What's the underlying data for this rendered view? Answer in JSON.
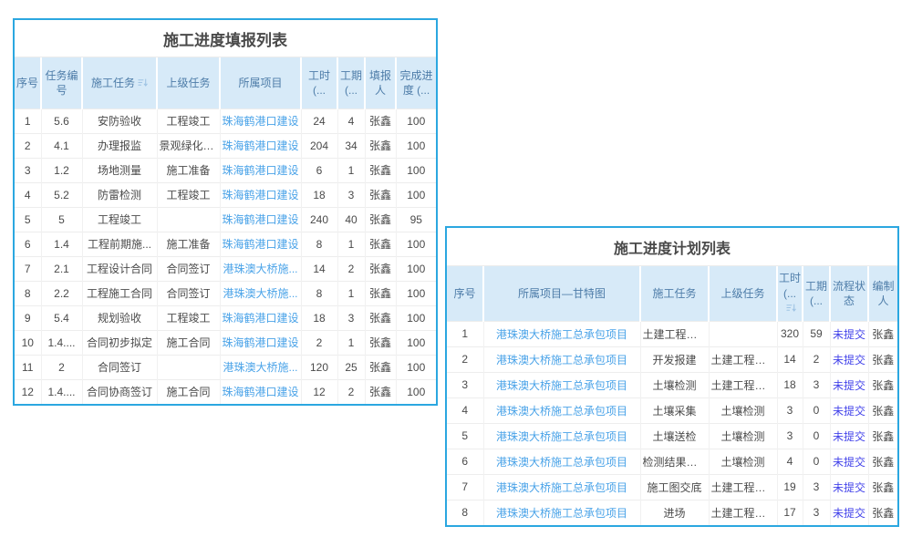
{
  "colors": {
    "card_border": "#2BA7E0",
    "header_bg": "#D7EAF8",
    "header_text": "#4D7CA8",
    "body_text": "#4A4A4A",
    "link": "#4AA3E8",
    "status_link": "#4343EA"
  },
  "report_table": {
    "title": "施工进度填报列表",
    "columns": [
      {
        "label": "序号",
        "type": "text"
      },
      {
        "label": "任务编号",
        "type": "text"
      },
      {
        "label": "施工任务",
        "type": "text",
        "sortable": true,
        "icon": "sort-icon"
      },
      {
        "label": "上级任务",
        "type": "text"
      },
      {
        "label": "所属项目",
        "type": "text"
      },
      {
        "label": "工时 (...",
        "type": "text"
      },
      {
        "label": "工期 (...",
        "type": "text"
      },
      {
        "label": "填报人",
        "type": "text"
      },
      {
        "label": "完成进度 (...",
        "type": "text"
      }
    ],
    "link_column_label": "所属项目",
    "rows": [
      [
        "1",
        "5.6",
        "安防验收",
        "工程竣工",
        "珠海鹤港口建设",
        "24",
        "4",
        "张鑫",
        "100"
      ],
      [
        "2",
        "4.1",
        "办理报监",
        "景观绿化施工",
        "珠海鹤港口建设",
        "204",
        "34",
        "张鑫",
        "100"
      ],
      [
        "3",
        "1.2",
        "场地测量",
        "施工准备",
        "珠海鹤港口建设",
        "6",
        "1",
        "张鑫",
        "100"
      ],
      [
        "4",
        "5.2",
        "防雷检测",
        "工程竣工",
        "珠海鹤港口建设",
        "18",
        "3",
        "张鑫",
        "100"
      ],
      [
        "5",
        "5",
        "工程竣工",
        "",
        "珠海鹤港口建设",
        "240",
        "40",
        "张鑫",
        "95"
      ],
      [
        "6",
        "1.4",
        "工程前期施...",
        "施工准备",
        "珠海鹤港口建设",
        "8",
        "1",
        "张鑫",
        "100"
      ],
      [
        "7",
        "2.1",
        "工程设计合同",
        "合同签订",
        "港珠澳大桥施...",
        "14",
        "2",
        "张鑫",
        "100"
      ],
      [
        "8",
        "2.2",
        "工程施工合同",
        "合同签订",
        "港珠澳大桥施...",
        "8",
        "1",
        "张鑫",
        "100"
      ],
      [
        "9",
        "5.4",
        "规划验收",
        "工程竣工",
        "珠海鹤港口建设",
        "18",
        "3",
        "张鑫",
        "100"
      ],
      [
        "10",
        "1.4....",
        "合同初步拟定",
        "施工合同",
        "珠海鹤港口建设",
        "2",
        "1",
        "张鑫",
        "100"
      ],
      [
        "11",
        "2",
        "合同签订",
        "",
        "港珠澳大桥施...",
        "120",
        "25",
        "张鑫",
        "100"
      ],
      [
        "12",
        "1.4....",
        "合同协商签订",
        "施工合同",
        "珠海鹤港口建设",
        "12",
        "2",
        "张鑫",
        "100"
      ]
    ]
  },
  "plan_table": {
    "title": "施工进度计划列表",
    "columns": [
      {
        "label": "序号",
        "type": "text"
      },
      {
        "label": "所属项目—甘特图",
        "type": "link"
      },
      {
        "label": "施工任务",
        "type": "text"
      },
      {
        "label": "上级任务",
        "type": "text"
      },
      {
        "label": "工时 (...",
        "type": "text",
        "sortable": true,
        "icon": "sort-icon"
      },
      {
        "label": "工期 (...",
        "type": "text"
      },
      {
        "label": "流程状态",
        "type": "status"
      },
      {
        "label": "编制人",
        "type": "text"
      }
    ],
    "rows": [
      [
        "1",
        "港珠澳大桥施工总承包项目",
        "土建工程施工",
        "",
        "320",
        "59",
        "未提交",
        "张鑫"
      ],
      [
        "2",
        "港珠澳大桥施工总承包项目",
        "开发报建",
        "土建工程施工",
        "14",
        "2",
        "未提交",
        "张鑫"
      ],
      [
        "3",
        "港珠澳大桥施工总承包项目",
        "土壤检测",
        "土建工程施工",
        "18",
        "3",
        "未提交",
        "张鑫"
      ],
      [
        "4",
        "港珠澳大桥施工总承包项目",
        "土壤采集",
        "土壤检测",
        "3",
        "0",
        "未提交",
        "张鑫"
      ],
      [
        "5",
        "港珠澳大桥施工总承包项目",
        "土壤送检",
        "土壤检测",
        "3",
        "0",
        "未提交",
        "张鑫"
      ],
      [
        "6",
        "港珠澳大桥施工总承包项目",
        "检测结果存底",
        "土壤检测",
        "4",
        "0",
        "未提交",
        "张鑫"
      ],
      [
        "7",
        "港珠澳大桥施工总承包项目",
        "施工图交底",
        "土建工程施工",
        "19",
        "3",
        "未提交",
        "张鑫"
      ],
      [
        "8",
        "港珠澳大桥施工总承包项目",
        "进场",
        "土建工程施工",
        "17",
        "3",
        "未提交",
        "张鑫"
      ]
    ]
  }
}
